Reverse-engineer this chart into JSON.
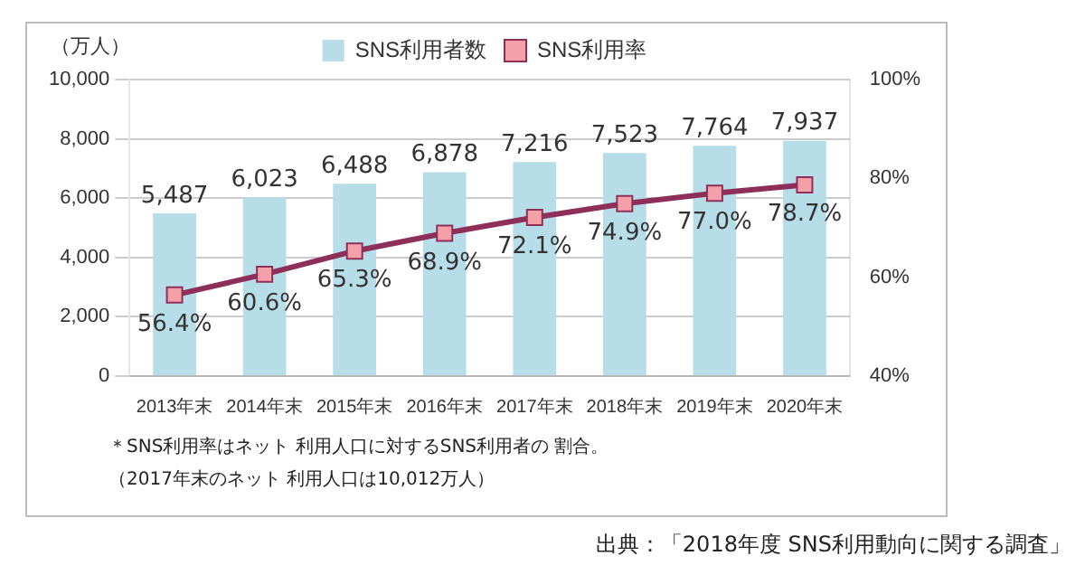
{
  "chart_data": {
    "type": "bar",
    "ylabel": "（万人）",
    "categories": [
      "2013年末",
      "2014年末",
      "2015年末",
      "2016年末",
      "2017年末",
      "2018年末",
      "2019年末",
      "2020年末"
    ],
    "series": [
      {
        "name": "SNS利用者数",
        "color": "#b7dde8",
        "values": [
          5487,
          6023,
          6488,
          6878,
          7216,
          7523,
          7764,
          7937
        ],
        "value_labels": [
          "5,487",
          "6,023",
          "6,488",
          "6,878",
          "7,216",
          "7,523",
          "7,764",
          "7,937"
        ]
      },
      {
        "name": "SNS利用率",
        "type": "line",
        "axis": "y2",
        "color": "#8e2f5a",
        "values": [
          56.4,
          60.6,
          65.3,
          68.9,
          72.1,
          74.9,
          77.0,
          78.7
        ],
        "value_labels": [
          "56.4%",
          "60.6%",
          "65.3%",
          "68.9%",
          "72.1%",
          "74.9%",
          "77.0%",
          "78.7%"
        ]
      }
    ],
    "ylim": [
      0,
      10000
    ],
    "yticks": [
      0,
      {
        "value": 2000,
        "label": "2,000"
      },
      {
        "value": 4000,
        "label": "4,000"
      },
      {
        "value": 6000,
        "label": "6,000"
      },
      {
        "value": 8000,
        "label": "8,000"
      },
      {
        "value": 10000,
        "label": "10,000"
      }
    ],
    "y2lim": [
      40,
      100
    ],
    "y2ticks": [
      {
        "value": 40,
        "label": "40%"
      },
      {
        "value": 60,
        "label": "60%"
      },
      {
        "value": 80,
        "label": "80%"
      },
      {
        "value": 100,
        "label": "100%"
      }
    ],
    "grid": "y",
    "legend": "top",
    "marker": "square",
    "annotations": [
      "＊SNS利用率はネット 利用人口に対するSNS利用者の 割合。",
      "（2017年末のネット 利用人口は10,012万人）",
      "出典：「2018年度 SNS利用動向に関する調査」"
    ]
  }
}
